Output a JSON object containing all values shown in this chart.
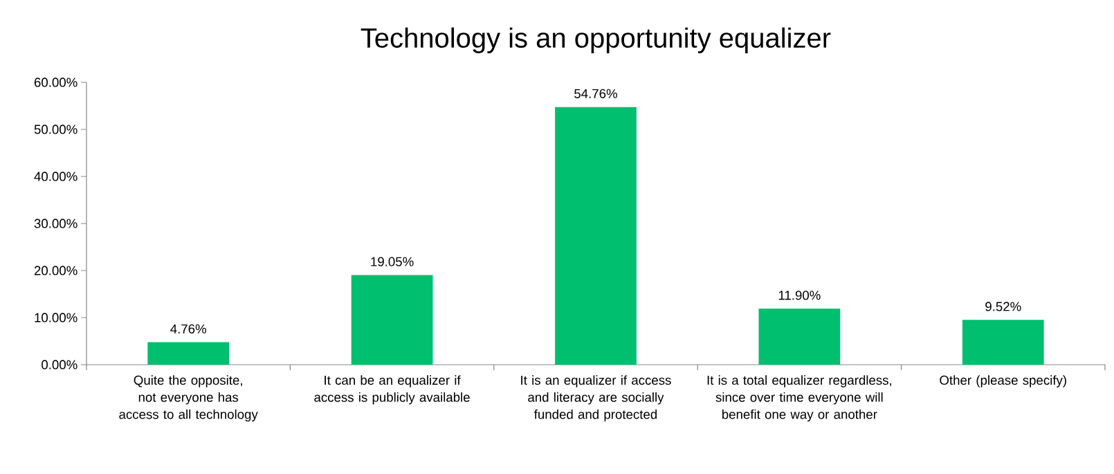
{
  "chart_data": {
    "type": "bar",
    "title": "Technology is an opportunity equalizer",
    "categories": [
      "Quite the opposite, not everyone has access to all technology",
      "It can be an equalizer if access is publicly available",
      "It is an equalizer if access and literacy are socially funded and protected",
      "It is a total equalizer regardless, since over time everyone will benefit one way or another",
      "Other (please specify)"
    ],
    "values": [
      4.76,
      19.05,
      54.76,
      11.9,
      9.52
    ],
    "value_labels": [
      "4.76%",
      "19.05%",
      "54.76%",
      "11.90%",
      "9.52%"
    ],
    "color": "#00bf6f",
    "ylim": [
      0,
      60
    ],
    "yticks": [
      {
        "value": 0,
        "label": "0.00%"
      },
      {
        "value": 10,
        "label": "10.00%"
      },
      {
        "value": 20,
        "label": "20.00%"
      },
      {
        "value": 30,
        "label": "30.00%"
      },
      {
        "value": 40,
        "label": "40.00%"
      },
      {
        "value": 50,
        "label": "50.00%"
      },
      {
        "value": 60,
        "label": "60.00%"
      }
    ]
  }
}
